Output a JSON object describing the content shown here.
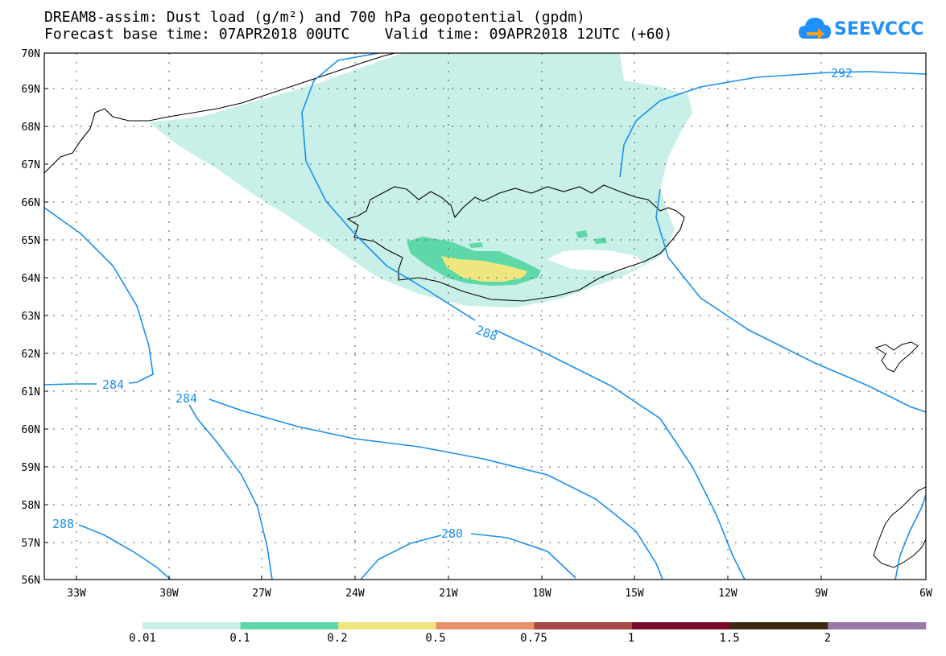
{
  "title": {
    "line1": "DREAM8-assim: Dust load (g/m²) and 700 hPa geopotential (gpdm)",
    "line2": "Forecast base time: 07APR2018 00UTC    Valid time: 09APR2018 12UTC (+60)"
  },
  "logo": {
    "text": "SEEVCCC",
    "icon": "cloud-arrow-icon"
  },
  "axes": {
    "lat_labels": [
      "70N",
      "69N",
      "68N",
      "67N",
      "66N",
      "65N",
      "64N",
      "63N",
      "62N",
      "61N",
      "60N",
      "59N",
      "58N",
      "57N",
      "56N"
    ],
    "lon_labels": [
      "33W",
      "30W",
      "27W",
      "24W",
      "21W",
      "18W",
      "15W",
      "12W",
      "9W",
      "6W"
    ]
  },
  "contours": {
    "labels": [
      "292",
      "288",
      "284",
      "284",
      "288",
      "280"
    ]
  },
  "colorbar": {
    "colors": [
      "#c8f0e8",
      "#5ed8a8",
      "#f0e680",
      "#e8906a",
      "#a84848",
      "#7a0a2a",
      "#3a2a14",
      "#9a78a8"
    ],
    "tick_labels": [
      "0.01",
      "0.1",
      "0.2",
      "0.5",
      "0.75",
      "1",
      "1.5",
      "2"
    ]
  },
  "colors": {
    "contour": "#1a8ff0",
    "dust_low": "#c8f0e8",
    "dust_mid": "#5ed8a8",
    "dust_high": "#f0e680"
  }
}
